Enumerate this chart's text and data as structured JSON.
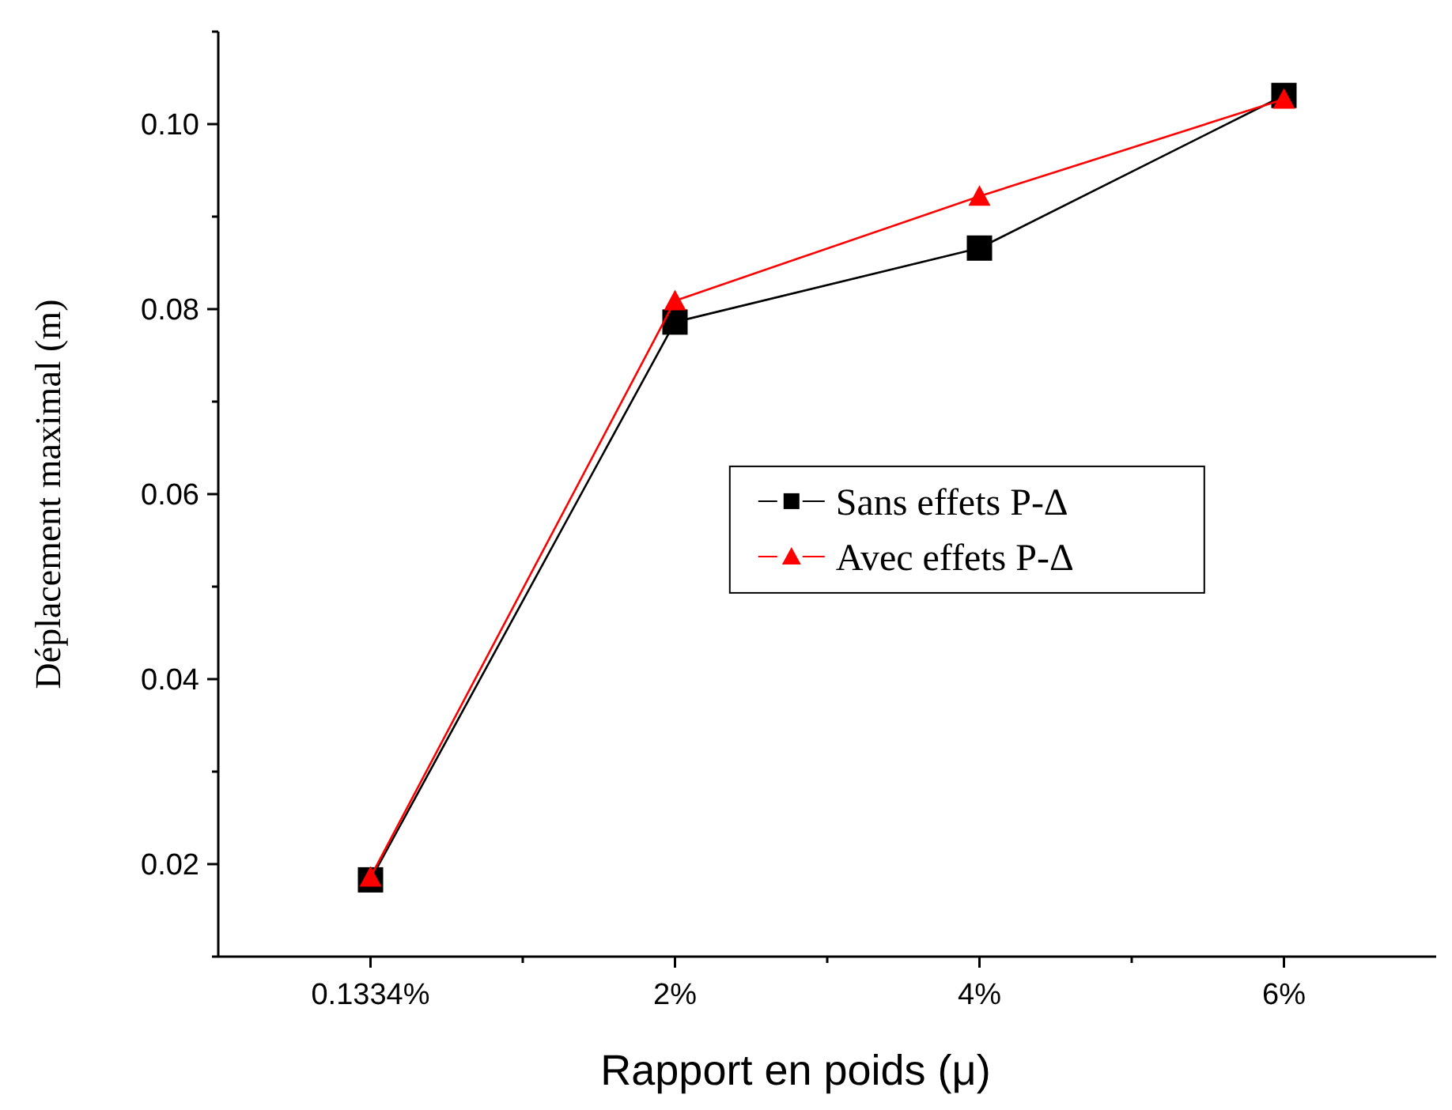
{
  "chart_data": {
    "type": "line",
    "xlabel": "Rapport en poids  (μ)",
    "ylabel": "Déplacement  maximal  (m)",
    "categories": [
      "0.1334%",
      "2%",
      "4%",
      "6%"
    ],
    "series": [
      {
        "name": "Sans effets P-Δ",
        "color": "#000000",
        "marker": "square",
        "values": [
          0.0183,
          0.0786,
          0.0866,
          0.1031
        ]
      },
      {
        "name": "Avec effets P-Δ",
        "color": "#ff0000",
        "marker": "triangle",
        "values": [
          0.0186,
          0.0809,
          0.0922,
          0.1027
        ]
      }
    ],
    "ylim": [
      0.01,
      0.11
    ],
    "yticks": [
      {
        "value": 0.01,
        "label": null
      },
      0.02,
      {
        "value": 0.03,
        "label": null
      },
      0.04,
      {
        "value": 0.05,
        "label": null
      },
      0.06,
      {
        "value": 0.07,
        "label": null
      },
      0.08,
      {
        "value": 0.09,
        "label": null
      },
      {
        "value": 0.1,
        "label": "0.10"
      },
      {
        "value": 0.11,
        "label": null
      }
    ],
    "grid": false,
    "legend": "center",
    "line_style": "solid"
  }
}
